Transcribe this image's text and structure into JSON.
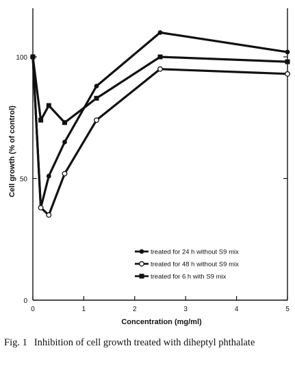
{
  "chart_data": {
    "type": "line",
    "xlabel": "Concentration (mg/ml)",
    "ylabel": "Cell growth (% of control)",
    "xlim": [
      0,
      5
    ],
    "ylim": [
      0,
      120
    ],
    "x_ticks": [
      0,
      1,
      2,
      3,
      4,
      5
    ],
    "y_ticks": [
      0,
      50,
      100
    ],
    "grid": false,
    "legend_position": "bottom-right",
    "series": [
      {
        "name": "treated for 24 h without S9 mix",
        "marker": "filled-circle",
        "x": [
          0,
          0.156,
          0.313,
          0.625,
          1.25,
          2.5,
          5
        ],
        "y": [
          100,
          38,
          51,
          65,
          88,
          110,
          102
        ]
      },
      {
        "name": "treated for 48 h without S9 mix",
        "marker": "open-circle",
        "x": [
          0,
          0.156,
          0.313,
          0.625,
          1.25,
          2.5,
          5
        ],
        "y": [
          100,
          38,
          35,
          52,
          74,
          95,
          93
        ]
      },
      {
        "name": "treated for 6 h with S9 mix",
        "marker": "filled-square",
        "x": [
          0,
          0.156,
          0.313,
          0.625,
          1.25,
          2.5,
          5
        ],
        "y": [
          100,
          74,
          80,
          73,
          83,
          100,
          98
        ]
      }
    ]
  },
  "caption": {
    "number": "Fig. 1",
    "text": "Inhibition of cell growth treated with diheptyl phthalate"
  }
}
